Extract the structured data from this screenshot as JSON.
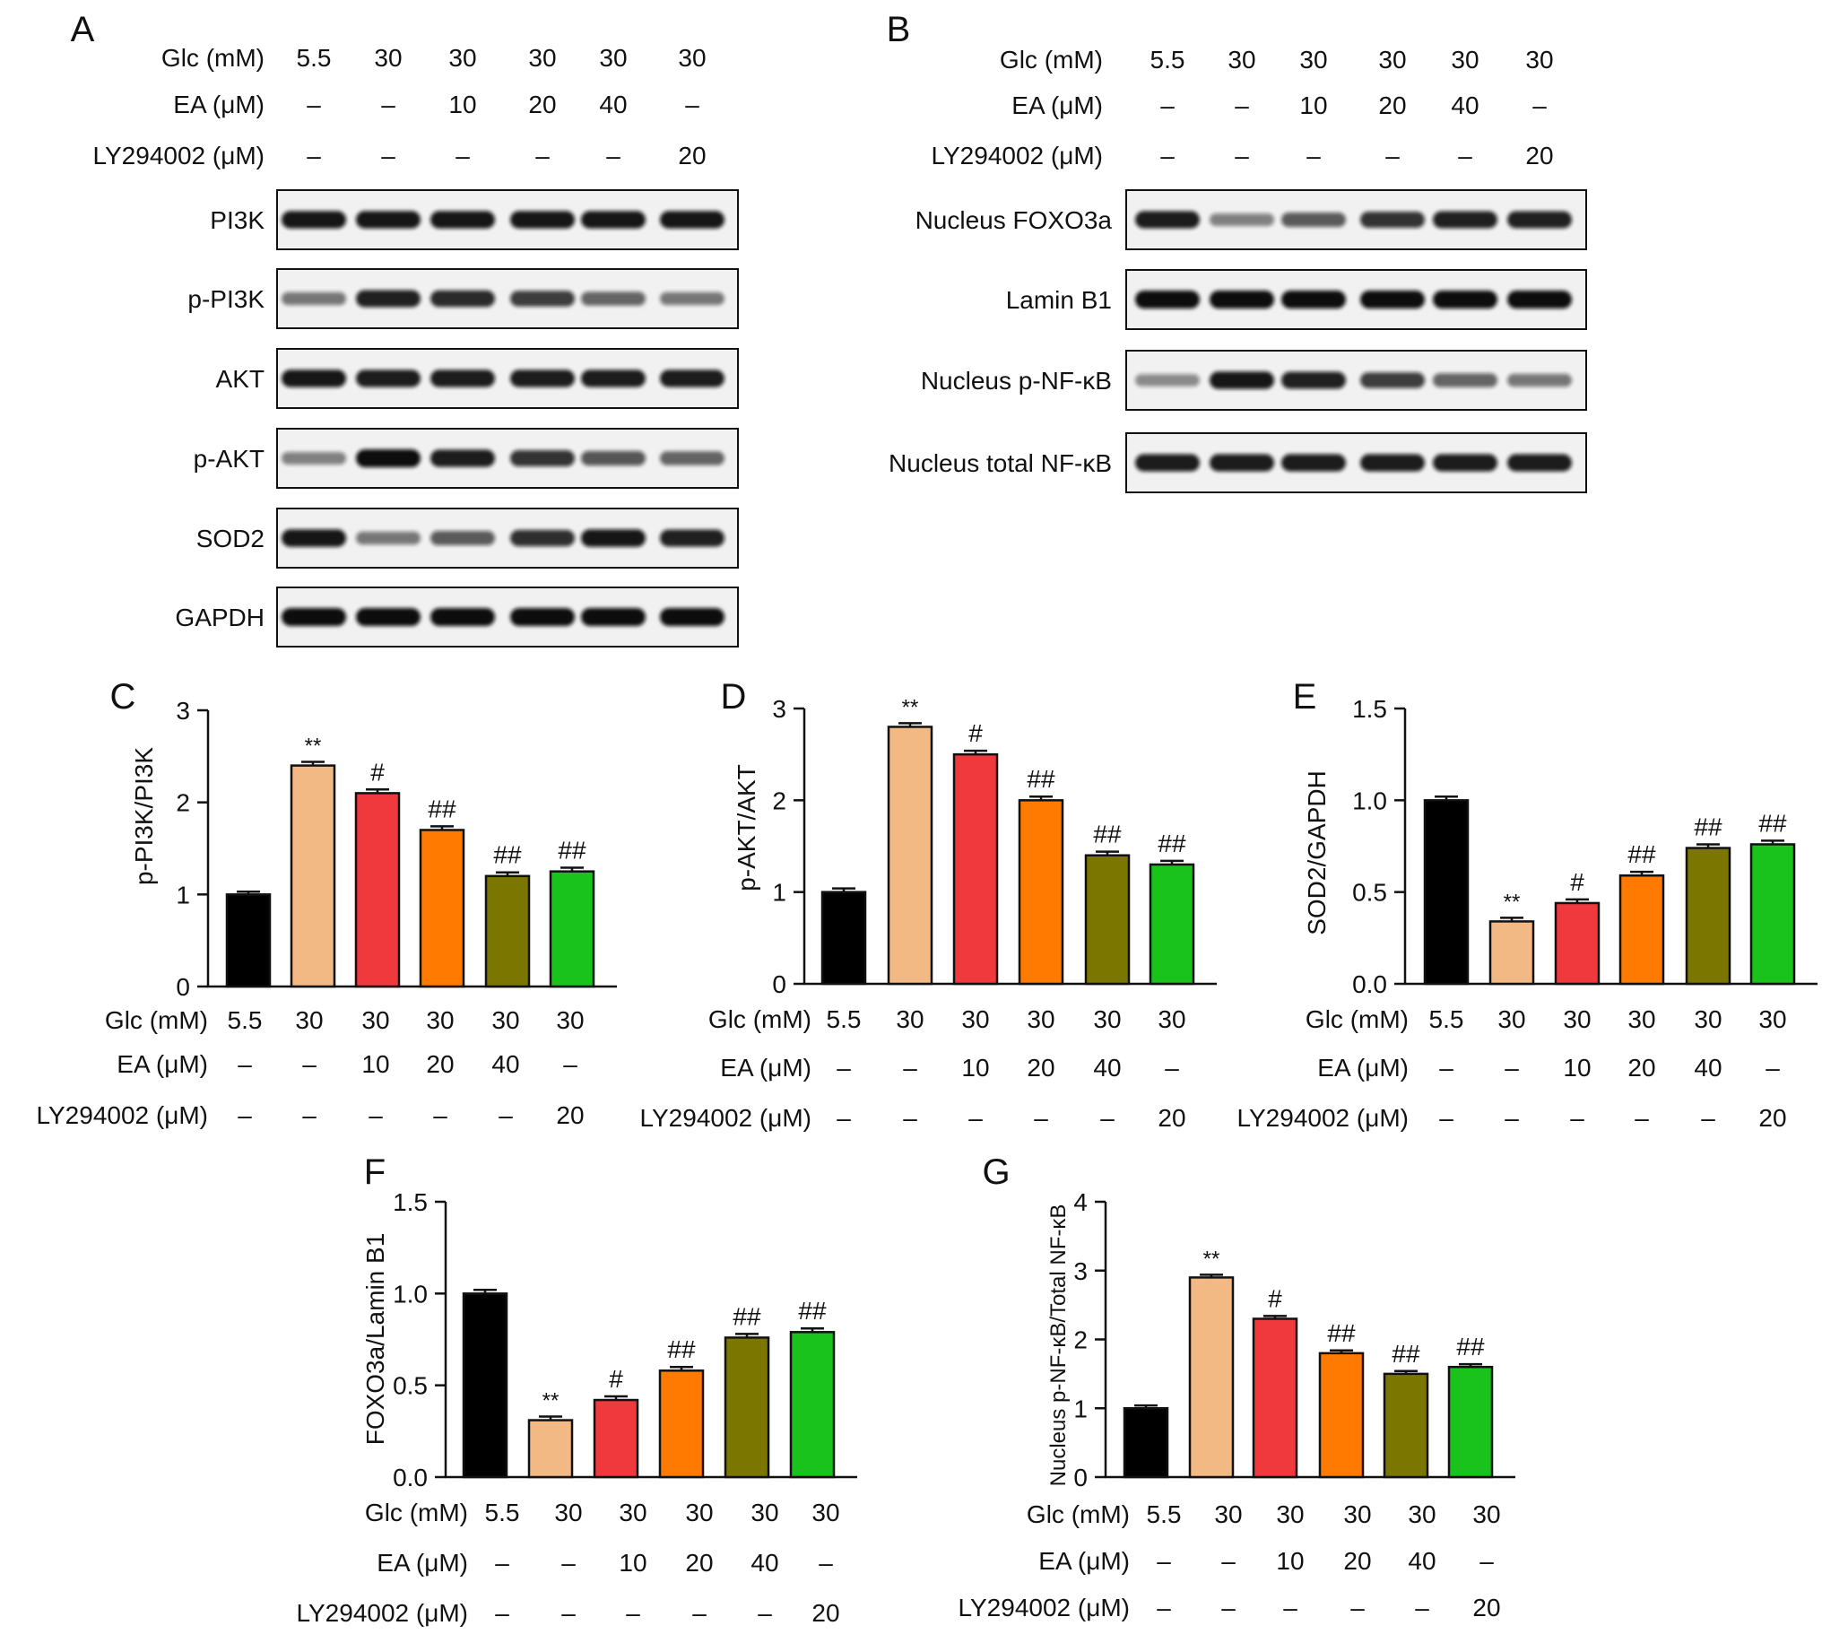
{
  "colors": {
    "bars": [
      "#000000",
      "#f2b985",
      "#f0393d",
      "#ff7a00",
      "#7a7600",
      "#19c31c"
    ],
    "blot_background": "#f1f1f1",
    "band": "#111111"
  },
  "conditions": {
    "glc_label": "Glc (mM)",
    "ea_label": "EA (μM)",
    "ly_label": "LY294002 (μM)",
    "glc": [
      "5.5",
      "30",
      "30",
      "30",
      "30",
      "30"
    ],
    "ea": [
      "–",
      "–",
      "10",
      "20",
      "40",
      "–"
    ],
    "ly": [
      "–",
      "–",
      "–",
      "–",
      "–",
      "20"
    ]
  },
  "blots": [
    {
      "panel": "A",
      "bands": [
        {
          "label": "PI3K",
          "intensity": [
            0.95,
            0.95,
            0.95,
            0.95,
            0.95,
            0.95
          ]
        },
        {
          "label": "p-PI3K",
          "intensity": [
            0.45,
            0.9,
            0.85,
            0.75,
            0.55,
            0.45
          ]
        },
        {
          "label": "AKT",
          "intensity": [
            0.95,
            0.92,
            0.92,
            0.92,
            0.92,
            0.92
          ]
        },
        {
          "label": "p-AKT",
          "intensity": [
            0.4,
            1.0,
            0.92,
            0.8,
            0.62,
            0.55
          ]
        },
        {
          "label": "SOD2",
          "intensity": [
            0.95,
            0.45,
            0.6,
            0.82,
            0.95,
            0.9
          ]
        },
        {
          "label": "GAPDH",
          "intensity": [
            1.0,
            1.0,
            1.0,
            1.0,
            1.0,
            1.0
          ]
        }
      ]
    },
    {
      "panel": "B",
      "bands": [
        {
          "label": "Nucleus FOXO3a",
          "intensity": [
            0.92,
            0.4,
            0.6,
            0.8,
            0.9,
            0.9
          ]
        },
        {
          "label": "Lamin B1",
          "intensity": [
            1.0,
            1.0,
            1.0,
            1.0,
            1.0,
            1.0
          ]
        },
        {
          "label": "Nucleus p-NF-κB",
          "intensity": [
            0.35,
            0.95,
            0.9,
            0.75,
            0.55,
            0.45
          ]
        },
        {
          "label": "Nucleus total NF-κB",
          "intensity": [
            0.92,
            0.92,
            0.92,
            0.92,
            0.92,
            0.92
          ]
        }
      ]
    }
  ],
  "chart_data": [
    {
      "panel": "C",
      "type": "bar",
      "ylabel": "p-PI3K/PI3K",
      "ylim": [
        0,
        3
      ],
      "yticks": [
        "0",
        "1",
        "2",
        "3"
      ],
      "values": [
        1.0,
        2.4,
        2.1,
        1.7,
        1.2,
        1.25
      ],
      "errors": [
        0.03,
        0.04,
        0.04,
        0.04,
        0.04,
        0.04
      ],
      "annotations": [
        "",
        "**",
        "#",
        "##",
        "##",
        "##"
      ]
    },
    {
      "panel": "D",
      "type": "bar",
      "ylabel": "p-AKT/AKT",
      "ylim": [
        0,
        3
      ],
      "yticks": [
        "0",
        "1",
        "2",
        "3"
      ],
      "values": [
        1.0,
        2.8,
        2.5,
        2.0,
        1.4,
        1.3
      ],
      "errors": [
        0.04,
        0.04,
        0.04,
        0.04,
        0.04,
        0.04
      ],
      "annotations": [
        "",
        "**",
        "#",
        "##",
        "##",
        "##"
      ]
    },
    {
      "panel": "E",
      "type": "bar",
      "ylabel": "SOD2/GAPDH",
      "ylim": [
        0,
        1.5
      ],
      "yticks": [
        "0.0",
        "0.5",
        "1.0",
        "1.5"
      ],
      "values": [
        1.0,
        0.34,
        0.44,
        0.59,
        0.74,
        0.76
      ],
      "errors": [
        0.02,
        0.02,
        0.02,
        0.02,
        0.02,
        0.02
      ],
      "annotations": [
        "",
        "**",
        "#",
        "##",
        "##",
        "##"
      ]
    },
    {
      "panel": "F",
      "type": "bar",
      "ylabel": "FOXO3a/Lamin B1",
      "ylim": [
        0,
        1.5
      ],
      "yticks": [
        "0.0",
        "0.5",
        "1.0",
        "1.5"
      ],
      "values": [
        1.0,
        0.31,
        0.42,
        0.58,
        0.76,
        0.79
      ],
      "errors": [
        0.02,
        0.02,
        0.02,
        0.02,
        0.02,
        0.02
      ],
      "annotations": [
        "",
        "**",
        "#",
        "##",
        "##",
        "##"
      ]
    },
    {
      "panel": "G",
      "type": "bar",
      "ylabel": "Nucleus p-NF-κB/Total NF-κB",
      "ylim": [
        0,
        4
      ],
      "yticks": [
        "0",
        "1",
        "2",
        "3",
        "4"
      ],
      "values": [
        1.0,
        2.9,
        2.3,
        1.8,
        1.5,
        1.6
      ],
      "errors": [
        0.04,
        0.04,
        0.04,
        0.04,
        0.04,
        0.04
      ],
      "annotations": [
        "",
        "**",
        "#",
        "##",
        "##",
        "##"
      ]
    }
  ]
}
